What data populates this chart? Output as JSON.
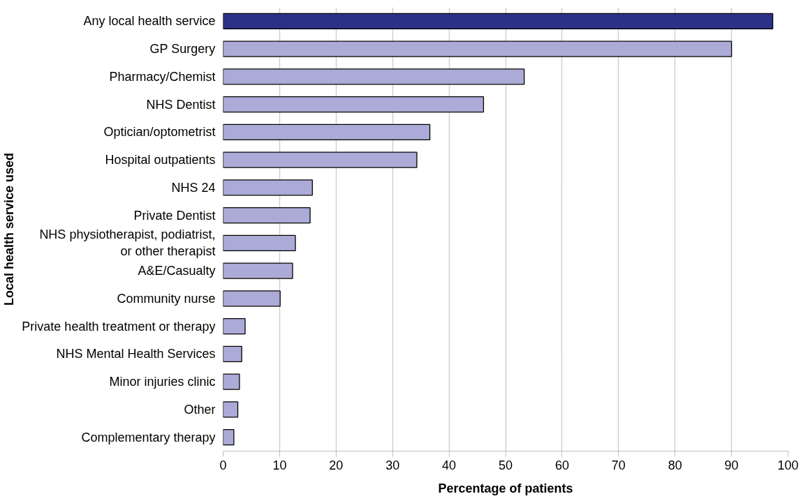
{
  "chart_data": {
    "type": "bar",
    "orientation": "horizontal",
    "xlabel": "Percentage of patients",
    "ylabel": "Local health service used",
    "categories": [
      "Any local health service",
      "GP Surgery",
      "Pharmacy/Chemist",
      "NHS Dentist",
      "Optician/optometrist",
      "Hospital outpatients",
      "NHS 24",
      "Private Dentist",
      "NHS physiotherapist, podiatrist, or other therapist",
      "A&E/Casualty",
      "Community nurse",
      "Private health treatment or therapy",
      "NHS Mental Health Services",
      "Minor injuries clinic",
      "Other",
      "Complementary therapy"
    ],
    "values": [
      97.3,
      90,
      53.3,
      46.1,
      36.6,
      34.3,
      15.8,
      15.4,
      12.8,
      12.3,
      10.1,
      3.9,
      3.3,
      2.9,
      2.6,
      1.9
    ],
    "colors": [
      "#2b3186",
      "#acaad6",
      "#acaad6",
      "#acaad6",
      "#acaad6",
      "#acaad6",
      "#acaad6",
      "#acaad6",
      "#acaad6",
      "#acaad6",
      "#acaad6",
      "#acaad6",
      "#acaad6",
      "#acaad6",
      "#acaad6",
      "#acaad6"
    ],
    "xlim": [
      0,
      100
    ],
    "xticks": [
      0,
      10,
      20,
      30,
      40,
      50,
      60,
      70,
      80,
      90,
      100
    ],
    "grid": "x"
  }
}
